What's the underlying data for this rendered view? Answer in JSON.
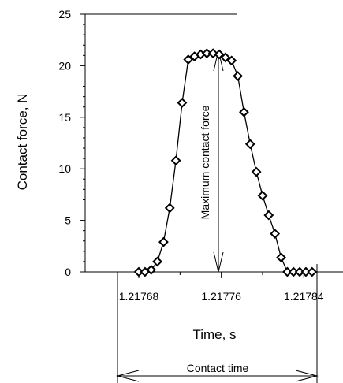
{
  "chart_data": {
    "type": "line",
    "xlabel": "Time, s",
    "ylabel": "Contact force, N",
    "xlim": [
      1.217628,
      1.217878
    ],
    "ylim": [
      0,
      25
    ],
    "x_ticks": [
      1.21768,
      1.21776,
      1.21784
    ],
    "x_tick_labels": [
      "1.21768",
      "1.21776",
      "1.21784"
    ],
    "y_ticks": [
      0,
      5,
      10,
      15,
      20,
      25
    ],
    "y_tick_labels": [
      "0",
      "5",
      "10",
      "15",
      "20",
      "25"
    ],
    "grid": false,
    "marker": "diamond",
    "series": [
      {
        "x": [
          1.21768,
          1.217686,
          1.217692,
          1.217698,
          1.217704,
          1.21771,
          1.217716,
          1.217722,
          1.217728,
          1.217734,
          1.21774,
          1.217746,
          1.217752,
          1.217758,
          1.217764,
          1.21777,
          1.217776,
          1.217782,
          1.217788,
          1.217794,
          1.2178,
          1.217806,
          1.217812,
          1.217818,
          1.217824,
          1.21783,
          1.217836,
          1.217842,
          1.217848
        ],
        "y": [
          0.0,
          0.0,
          0.2,
          1.0,
          2.9,
          6.2,
          10.8,
          16.4,
          20.6,
          20.9,
          21.1,
          21.2,
          21.2,
          21.1,
          20.8,
          20.5,
          19.0,
          15.5,
          12.4,
          9.7,
          7.4,
          5.5,
          3.7,
          1.4,
          0.0,
          0.0,
          0.0,
          0.0,
          0.0
        ]
      }
    ],
    "annotations": [
      {
        "text": "Maximum contact force",
        "x": 1.21776,
        "y_from": 0,
        "y_to": 21.2,
        "orientation": "vertical"
      },
      {
        "text": "Contact time",
        "x_from": 1.21768,
        "x_to": 1.217842,
        "orientation": "horizontal"
      }
    ]
  }
}
